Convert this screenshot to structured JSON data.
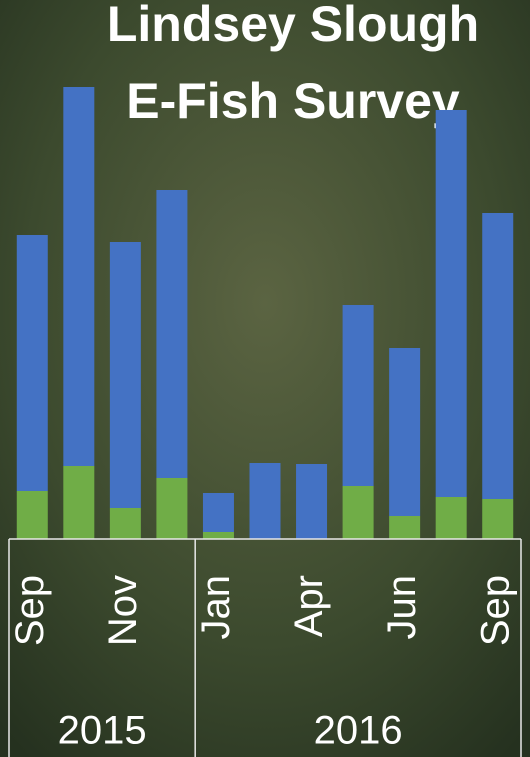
{
  "chart_data": {
    "type": "stacked_bar",
    "title_lines": [
      "Lindsey Slough",
      "E-Fish Survey"
    ],
    "categories": [
      "Sep",
      null,
      "Nov",
      null,
      "Jan",
      null,
      "Apr",
      null,
      "Jun",
      null,
      "Sep"
    ],
    "groups": [
      {
        "label": "2015",
        "span": 4
      },
      {
        "label": "2016",
        "span": 7
      }
    ],
    "series": [
      {
        "color": "#70ad47",
        "values": [
          48,
          73,
          31,
          61,
          7,
          0,
          0,
          53,
          23,
          42,
          40
        ]
      },
      {
        "color": "#4472c4",
        "values": [
          256,
          379,
          266,
          288,
          39,
          76,
          75,
          181,
          168,
          387,
          286
        ]
      }
    ],
    "ylim": [
      0,
      460
    ]
  }
}
